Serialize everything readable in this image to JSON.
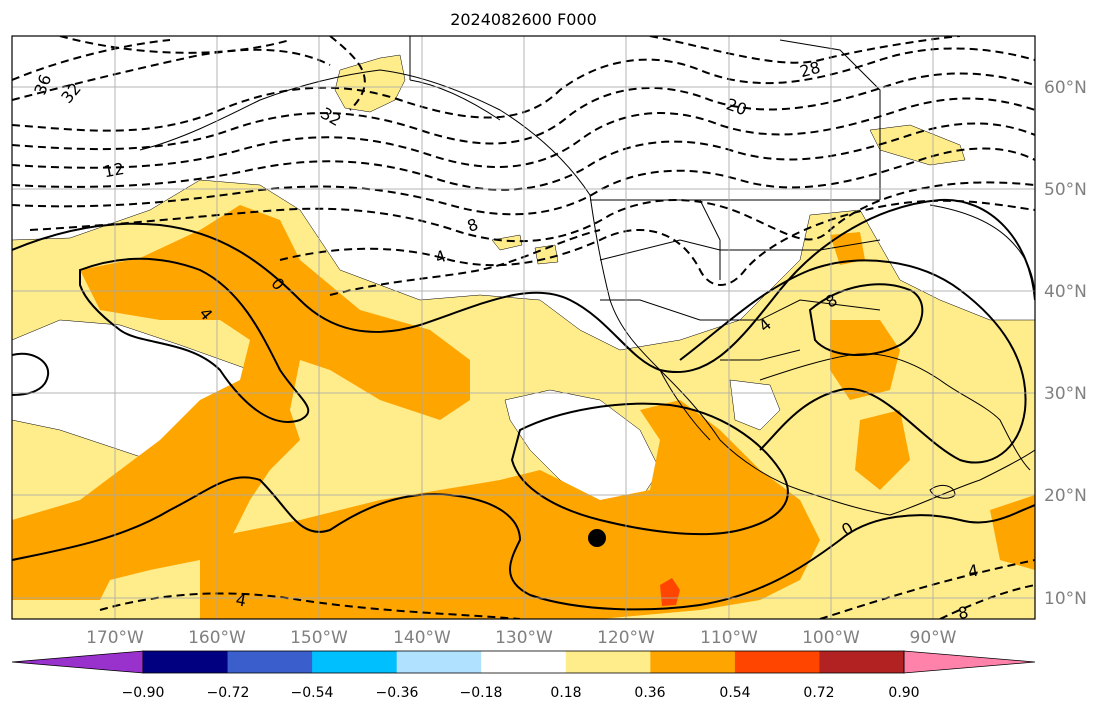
{
  "title": "2024082600 F000",
  "lon_labels": [
    "170°W",
    "160°W",
    "150°W",
    "140°W",
    "130°W",
    "120°W",
    "110°W",
    "100°W",
    "90°W"
  ],
  "lat_labels": [
    "60°N",
    "50°N",
    "40°N",
    "30°N",
    "20°N",
    "10°N"
  ],
  "contour_labels": {
    "c36": "36",
    "c32a": "32",
    "c32b": "32",
    "c28": "28",
    "c20": "20",
    "c12": "12",
    "c8a": "8",
    "c4a": "4",
    "c0a": "0",
    "c4b": "4",
    "c4c": "4",
    "c8b": "8",
    "c0b": "0",
    "c4d": "4",
    "c4e": "4",
    "c8c": "8"
  },
  "colorbar": {
    "ticks": [
      "−0.90",
      "−0.72",
      "−0.54",
      "−0.36",
      "−0.18",
      "0.18",
      "0.36",
      "0.54",
      "0.72",
      "0.90"
    ],
    "colors": [
      "#9932cc",
      "#000080",
      "#3a5fcd",
      "#00bfff",
      "#b0e2ff",
      "#ffffff",
      "#ffec8b",
      "#ffa500",
      "#ff4500",
      "#b22222",
      "#ff82ab"
    ]
  },
  "marker": "storm-center"
}
